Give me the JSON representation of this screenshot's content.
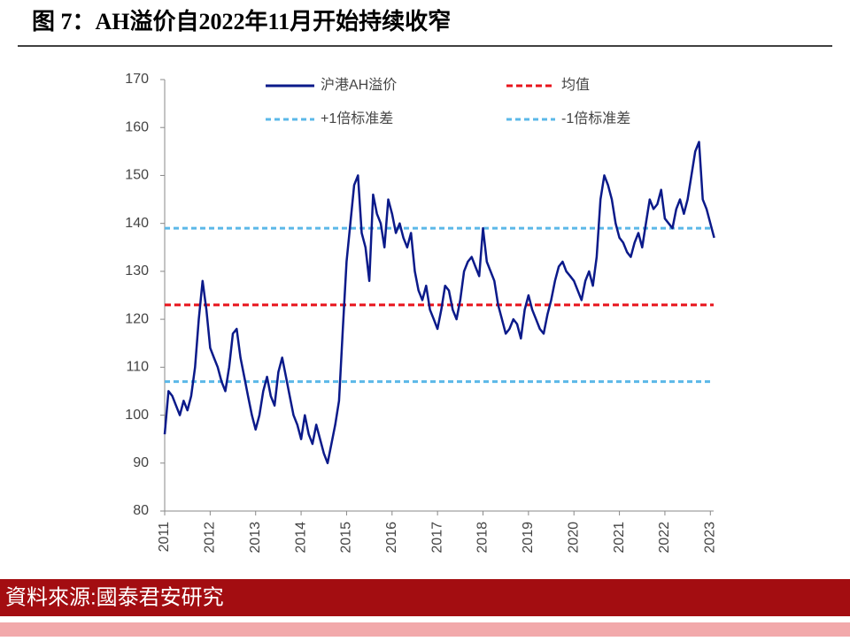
{
  "chart_data": {
    "type": "line",
    "title": "图 7：AH溢价自2022年11月开始持续收窄",
    "source": "資料來源:國泰君安研究",
    "x": [
      2011,
      2011.083,
      2011.167,
      2011.25,
      2011.333,
      2011.417,
      2011.5,
      2011.583,
      2011.667,
      2011.75,
      2011.833,
      2011.917,
      2012,
      2012.083,
      2012.167,
      2012.25,
      2012.333,
      2012.417,
      2012.5,
      2012.583,
      2012.667,
      2012.75,
      2012.833,
      2012.917,
      2013,
      2013.083,
      2013.167,
      2013.25,
      2013.333,
      2013.417,
      2013.5,
      2013.583,
      2013.667,
      2013.75,
      2013.833,
      2013.917,
      2014,
      2014.083,
      2014.167,
      2014.25,
      2014.333,
      2014.417,
      2014.5,
      2014.583,
      2014.667,
      2014.75,
      2014.833,
      2014.917,
      2015,
      2015.083,
      2015.167,
      2015.25,
      2015.333,
      2015.417,
      2015.5,
      2015.583,
      2015.667,
      2015.75,
      2015.833,
      2015.917,
      2016,
      2016.083,
      2016.167,
      2016.25,
      2016.333,
      2016.417,
      2016.5,
      2016.583,
      2016.667,
      2016.75,
      2016.833,
      2016.917,
      2017,
      2017.083,
      2017.167,
      2017.25,
      2017.333,
      2017.417,
      2017.5,
      2017.583,
      2017.667,
      2017.75,
      2017.833,
      2017.917,
      2018,
      2018.083,
      2018.167,
      2018.25,
      2018.333,
      2018.417,
      2018.5,
      2018.583,
      2018.667,
      2018.75,
      2018.833,
      2018.917,
      2019,
      2019.083,
      2019.167,
      2019.25,
      2019.333,
      2019.417,
      2019.5,
      2019.583,
      2019.667,
      2019.75,
      2019.833,
      2019.917,
      2020,
      2020.083,
      2020.167,
      2020.25,
      2020.333,
      2020.417,
      2020.5,
      2020.583,
      2020.667,
      2020.75,
      2020.833,
      2020.917,
      2021,
      2021.083,
      2021.167,
      2021.25,
      2021.333,
      2021.417,
      2021.5,
      2021.583,
      2021.667,
      2021.75,
      2021.833,
      2021.917,
      2022,
      2022.083,
      2022.167,
      2022.25,
      2022.333,
      2022.417,
      2022.5,
      2022.583,
      2022.667,
      2022.75,
      2022.833,
      2022.917,
      2023,
      2023.083
    ],
    "series": [
      {
        "name": "沪港AH溢价",
        "color": "#0b1a8a",
        "values": [
          96,
          105,
          104,
          102,
          100,
          103,
          101,
          104,
          110,
          120,
          128,
          122,
          114,
          112,
          110,
          107,
          105,
          110,
          117,
          118,
          112,
          108,
          104,
          100,
          97,
          100,
          105,
          108,
          104,
          102,
          109,
          112,
          108,
          104,
          100,
          98,
          95,
          100,
          96,
          94,
          98,
          95,
          92,
          90,
          94,
          98,
          103,
          118,
          132,
          140,
          148,
          150,
          138,
          135,
          128,
          146,
          142,
          140,
          135,
          145,
          142,
          138,
          140,
          137,
          135,
          138,
          130,
          126,
          124,
          127,
          122,
          120,
          118,
          122,
          127,
          126,
          122,
          120,
          124,
          130,
          132,
          133,
          131,
          129,
          139,
          132,
          130,
          128,
          123,
          120,
          117,
          118,
          120,
          119,
          116,
          122,
          125,
          122,
          120,
          118,
          117,
          121,
          124,
          128,
          131,
          132,
          130,
          129,
          128,
          126,
          124,
          128,
          130,
          127,
          133,
          145,
          150,
          148,
          145,
          140,
          137,
          136,
          134,
          133,
          136,
          138,
          135,
          140,
          145,
          143,
          144,
          147,
          141,
          140,
          139,
          143,
          145,
          142,
          145,
          150,
          155,
          157,
          145,
          143,
          140,
          137
        ]
      }
    ],
    "reference_lines": [
      {
        "name": "均值",
        "value": 123,
        "color": "#e8141c"
      },
      {
        "name": "+1倍标准差",
        "value": 139,
        "color": "#5bb8e8"
      },
      {
        "name": "-1倍标准差",
        "value": 107,
        "color": "#5bb8e8"
      }
    ],
    "xlim": [
      2011,
      2023.15
    ],
    "xticks": [
      2011,
      2012,
      2013,
      2014,
      2015,
      2016,
      2017,
      2018,
      2019,
      2020,
      2021,
      2022,
      2023
    ],
    "ylim": [
      80,
      170
    ],
    "yticks": [
      80,
      90,
      100,
      110,
      120,
      130,
      140,
      150,
      160,
      170
    ],
    "grid": false
  }
}
